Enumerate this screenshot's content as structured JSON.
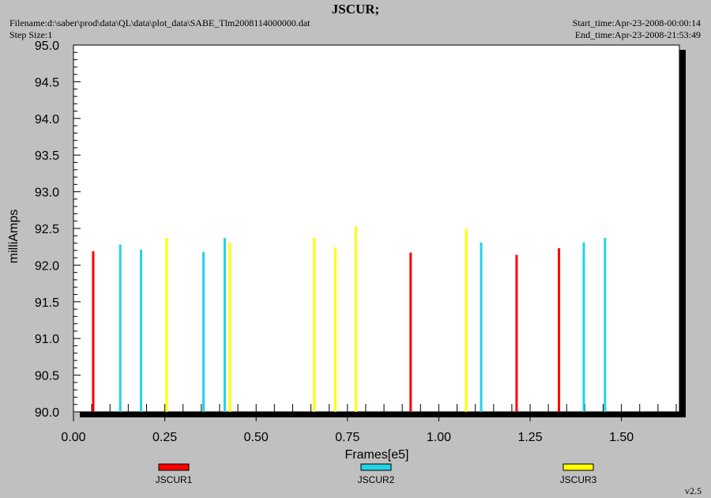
{
  "header": {
    "title": "JSCUR;",
    "filename": "Filename:d:\\saber\\prod\\data\\QL\\data\\plot_data\\SABE_Tlm2008114000000.dat",
    "step_size": "Step Size:1",
    "start_time": "Start_time:Apr-23-2008-00:00:14",
    "end_time": "End_time:Apr-23-2008-21:53:49"
  },
  "footer": {
    "version": "v2.5"
  },
  "chart_data": {
    "type": "bar",
    "xlabel": "Frames[e5]",
    "ylabel": "milliAmps",
    "xlim": [
      0.0,
      1.65
    ],
    "ylim": [
      90.0,
      95.0
    ],
    "x_ticks": [
      "0.00",
      "0.25",
      "0.50",
      "0.75",
      "1.00",
      "1.25",
      "1.50"
    ],
    "y_ticks": [
      "90.0",
      "90.5",
      "91.0",
      "91.5",
      "92.0",
      "92.5",
      "93.0",
      "93.5",
      "94.0",
      "94.5",
      "95.0"
    ],
    "legend_placement": "bottom",
    "grid": false,
    "series": [
      {
        "name": "JSCUR1",
        "color": "#ff0000",
        "x": [
          0.054,
          0.923,
          1.213,
          1.329
        ],
        "y": [
          92.19,
          92.17,
          92.14,
          92.23
        ]
      },
      {
        "name": "JSCUR2",
        "color": "#22d3e6",
        "x": [
          0.128,
          0.185,
          0.356,
          0.414,
          1.116,
          1.397,
          1.455
        ],
        "y": [
          92.28,
          92.21,
          92.18,
          92.37,
          92.31,
          92.31,
          92.37
        ]
      },
      {
        "name": "JSCUR3",
        "color": "#ffff00",
        "x": [
          0.255,
          0.428,
          0.659,
          0.717,
          0.773,
          1.075
        ],
        "y": [
          92.37,
          92.31,
          92.37,
          92.24,
          92.53,
          92.5
        ]
      }
    ]
  }
}
